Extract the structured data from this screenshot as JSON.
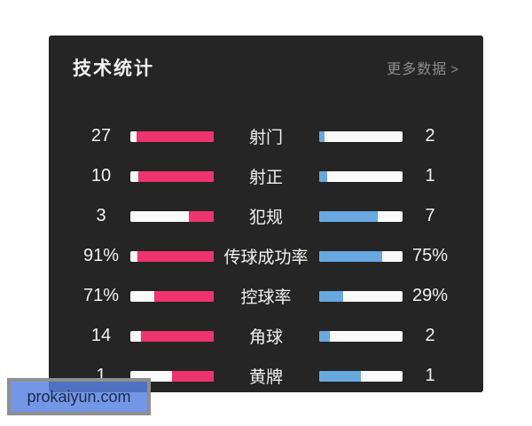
{
  "panel": {
    "title": "技术统计",
    "more_label": "更多数据",
    "more_arrow": ">",
    "colors": {
      "home": "#ee3370",
      "away": "#68a8e0",
      "track": "#fafafa",
      "panel_bg": "#252525"
    },
    "rows": [
      {
        "label": "射门",
        "home": "27",
        "away": "2",
        "home_pct": 93.1,
        "away_pct": 6.9
      },
      {
        "label": "射正",
        "home": "10",
        "away": "1",
        "home_pct": 90.9,
        "away_pct": 9.1
      },
      {
        "label": "犯规",
        "home": "3",
        "away": "7",
        "home_pct": 30,
        "away_pct": 70
      },
      {
        "label": "传球成功率",
        "home": "91%",
        "away": "75%",
        "home_pct": 91,
        "away_pct": 75
      },
      {
        "label": "控球率",
        "home": "71%",
        "away": "29%",
        "home_pct": 71,
        "away_pct": 29
      },
      {
        "label": "角球",
        "home": "14",
        "away": "2",
        "home_pct": 87.5,
        "away_pct": 12.5
      },
      {
        "label": "黄牌",
        "home": "1",
        "away": "1",
        "home_pct": 50,
        "away_pct": 50
      }
    ]
  },
  "watermark": {
    "text": "prokaiyun.com"
  }
}
